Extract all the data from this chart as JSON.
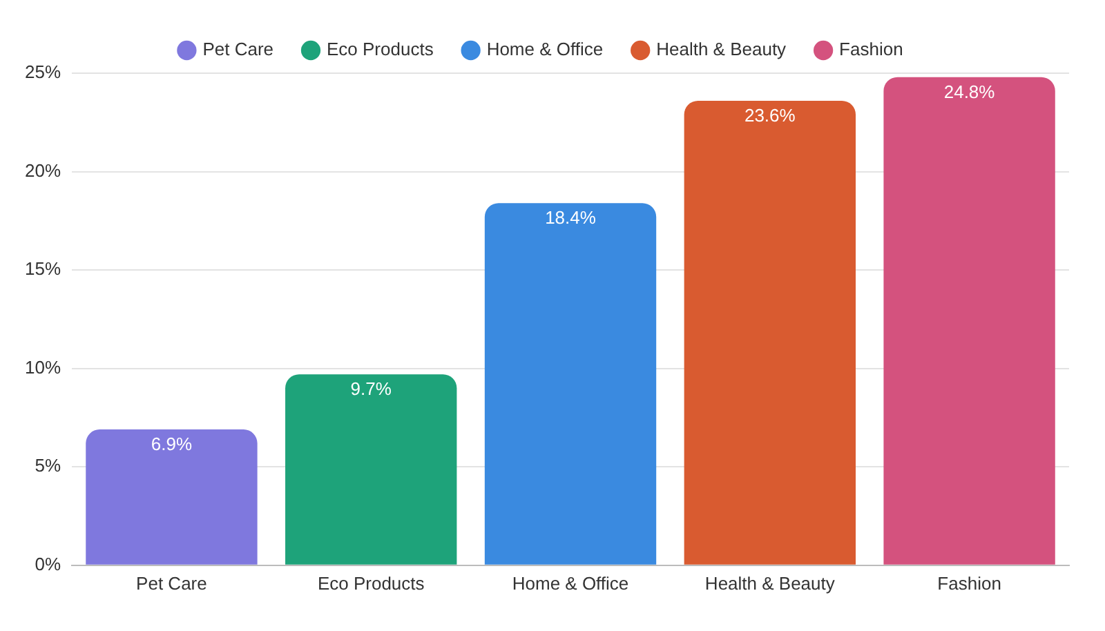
{
  "chart_data": {
    "type": "bar",
    "categories": [
      "Pet Care",
      "Eco Products",
      "Home & Office",
      "Health & Beauty",
      "Fashion"
    ],
    "series": [
      {
        "name": "Pet Care",
        "color": "#7f78de",
        "values": [
          6.9,
          null,
          null,
          null,
          null
        ],
        "value_labels": [
          "6.9%",
          null,
          null,
          null,
          null
        ]
      },
      {
        "name": "Eco Products",
        "color": "#1ea37a",
        "values": [
          null,
          9.7,
          null,
          null,
          null
        ],
        "value_labels": [
          null,
          "9.7%",
          null,
          null,
          null
        ]
      },
      {
        "name": "Home & Office",
        "color": "#3a8ae0",
        "values": [
          null,
          null,
          18.4,
          null,
          null
        ],
        "value_labels": [
          null,
          null,
          "18.4%",
          null,
          null
        ]
      },
      {
        "name": "Health & Beauty",
        "color": "#d95b30",
        "values": [
          null,
          null,
          null,
          23.6,
          null
        ],
        "value_labels": [
          null,
          null,
          null,
          "23.6%",
          null
        ]
      },
      {
        "name": "Fashion",
        "color": "#d4527e",
        "values": [
          null,
          null,
          null,
          null,
          24.8
        ],
        "value_labels": [
          null,
          null,
          null,
          null,
          "24.8%"
        ]
      }
    ],
    "ylim": [
      0,
      25
    ],
    "yticks": [
      {
        "value": 0,
        "label": "0%"
      },
      {
        "value": 5,
        "label": "5%"
      },
      {
        "value": 10,
        "label": "10%"
      },
      {
        "value": 15,
        "label": "15%"
      },
      {
        "value": 20,
        "label": "20%"
      },
      {
        "value": 25,
        "label": "25%"
      }
    ],
    "grid": "y",
    "legend": "top"
  }
}
